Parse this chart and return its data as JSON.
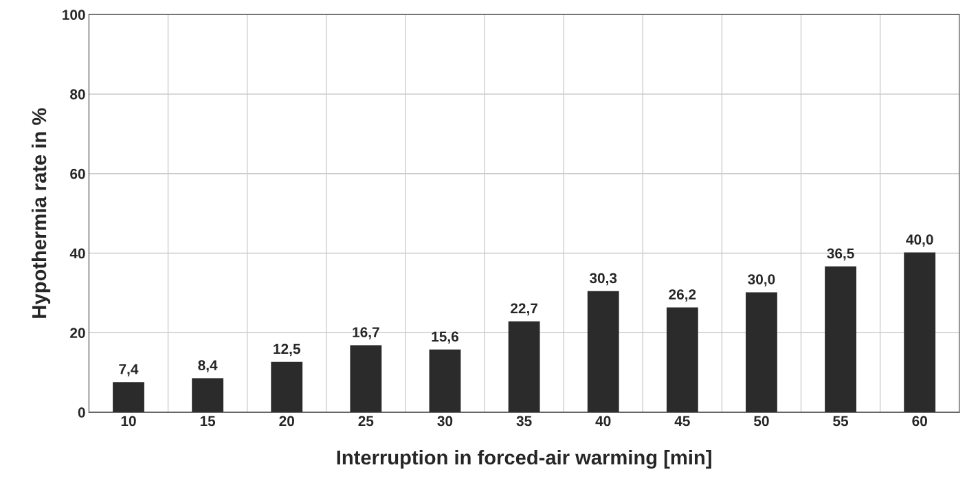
{
  "chart_data": {
    "type": "bar",
    "xlabel": "Interruption in forced-air warming [min]",
    "ylabel": "Hypothermia rate in %",
    "categories": [
      "10",
      "15",
      "20",
      "25",
      "30",
      "35",
      "40",
      "45",
      "50",
      "55",
      "60"
    ],
    "values": [
      7.4,
      8.4,
      12.5,
      16.7,
      15.6,
      22.7,
      30.3,
      26.2,
      30.0,
      36.5,
      40.0
    ],
    "value_labels": [
      "7,4",
      "8,4",
      "12,5",
      "16,7",
      "15,6",
      "22,7",
      "30,3",
      "26,2",
      "30,0",
      "36,5",
      "40,0"
    ],
    "color": "#2b2b2b",
    "ylim": [
      0,
      100
    ],
    "yticks": [
      0,
      20,
      40,
      60,
      80,
      100
    ],
    "grid": true
  }
}
